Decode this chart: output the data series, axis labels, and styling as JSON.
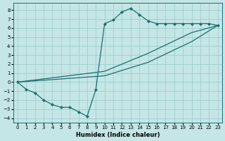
{
  "xlabel": "Humidex (Indice chaleur)",
  "background_color": "#c5e6e6",
  "grid_color": "#9ecece",
  "line_color": "#1a6e6e",
  "xlim": [
    -0.5,
    23.5
  ],
  "ylim": [
    -4.5,
    8.8
  ],
  "xticks": [
    0,
    1,
    2,
    3,
    4,
    5,
    6,
    7,
    8,
    9,
    10,
    11,
    12,
    13,
    14,
    15,
    16,
    17,
    18,
    19,
    20,
    21,
    22,
    23
  ],
  "yticks": [
    -4,
    -3,
    -2,
    -1,
    0,
    1,
    2,
    3,
    4,
    5,
    6,
    7,
    8
  ],
  "main_x": [
    0,
    1,
    2,
    3,
    4,
    5,
    6,
    7,
    8,
    9,
    10,
    11,
    12,
    13,
    14,
    15,
    16,
    17,
    18,
    19,
    20,
    21,
    22,
    23
  ],
  "main_y": [
    0.0,
    -0.8,
    -1.2,
    -2.0,
    -2.5,
    -2.8,
    -2.8,
    -3.3,
    -3.8,
    -0.8,
    6.5,
    6.9,
    7.8,
    8.2,
    7.5,
    6.8,
    6.5,
    6.5,
    6.5,
    6.5,
    6.5,
    6.5,
    6.5,
    6.3
  ],
  "diag_upper_x": [
    0,
    10,
    15,
    20,
    23
  ],
  "diag_upper_y": [
    0.0,
    1.2,
    3.2,
    5.5,
    6.3
  ],
  "diag_lower_x": [
    0,
    10,
    15,
    20,
    23
  ],
  "diag_lower_y": [
    0.0,
    0.7,
    2.2,
    4.5,
    6.3
  ],
  "markersize": 2.5,
  "lw": 0.9
}
